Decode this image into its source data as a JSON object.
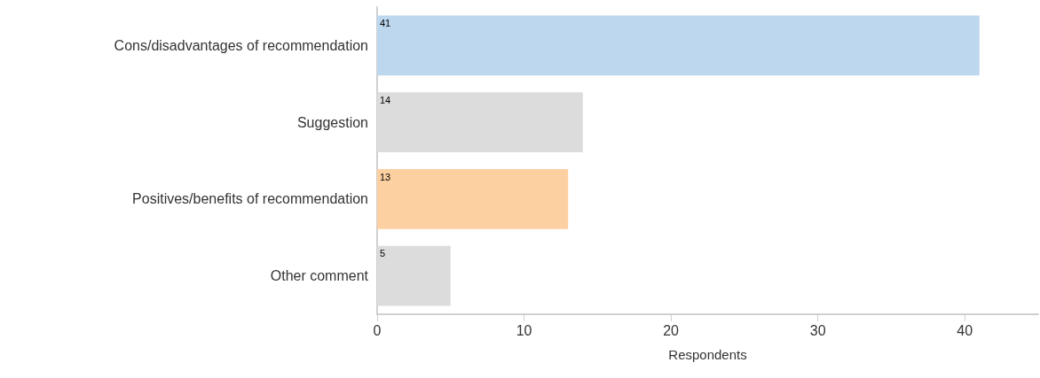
{
  "chart_data": {
    "type": "bar",
    "orientation": "horizontal",
    "xlabel": "Respondents",
    "categories": [
      "Cons/disadvantages of recommendation",
      "Suggestion",
      "Positives/benefits of recommendation",
      "Other comment"
    ],
    "values": [
      41,
      14,
      13,
      5
    ],
    "colors": [
      "#bdd7ee",
      "#dcdcdc",
      "#fdd0a2",
      "#dcdcdc"
    ],
    "xlim": [
      0,
      45
    ],
    "xticks": [
      0,
      10,
      20,
      30,
      40
    ],
    "grid": false,
    "data_labels": true
  }
}
